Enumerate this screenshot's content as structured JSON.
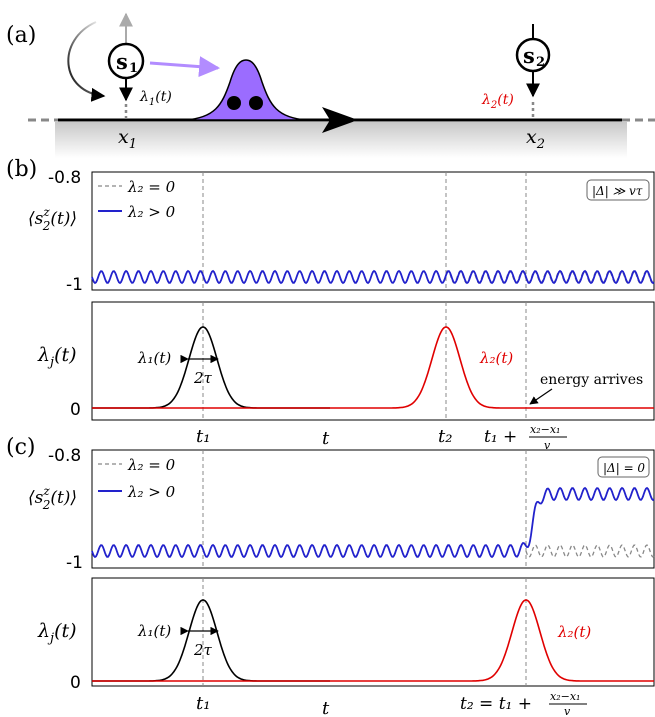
{
  "panel_a": {
    "label": "(a)",
    "spin1": "s",
    "spin1_sub": "1",
    "spin2": "s",
    "spin2_sub": "2",
    "lambda1": "λ",
    "lambda1_sub": "1",
    "lambda1_arg": "(t)",
    "lambda2": "λ",
    "lambda2_sub": "2",
    "lambda2_arg": "(t)",
    "x1": "x",
    "x1_sub": "1",
    "x2": "x",
    "x2_sub": "2",
    "colors": {
      "wavepacket": "#9b6cff",
      "arrow": "#b28cff",
      "lambda2": "#e00000"
    }
  },
  "panel_b": {
    "label": "(b)",
    "top": {
      "y_top": "-0.8",
      "y_bottom": "-1",
      "ylabel_main": "⟨s",
      "ylabel_sup": "z",
      "ylabel_sub": "2",
      "ylabel_tail": "(t)⟩",
      "legend_dashed": "λ₂ = 0",
      "legend_solid": "λ₂ > 0",
      "regime": "|Δ| ≫ vτ"
    },
    "bottom": {
      "ylabel": "λ",
      "ylabel_sub": "j",
      "ylabel_tail": "(t)",
      "y_zero": "0",
      "lambda1_label": "λ₁(t)",
      "width_label": "2τ",
      "lambda2_label": "λ₂(t)",
      "annotation": "energy arrives",
      "tick_t1": "t₁",
      "tick_t": "t",
      "tick_t2": "t₂",
      "tick_t_arrive_prefix": "t₁ +",
      "frac_num": "x₂−x₁",
      "frac_den": "v"
    }
  },
  "panel_c": {
    "label": "(c)",
    "top": {
      "y_top": "-0.8",
      "y_bottom": "-1",
      "ylabel_main": "⟨s",
      "ylabel_sup": "z",
      "ylabel_sub": "2",
      "ylabel_tail": "(t)⟩",
      "legend_dashed": "λ₂ = 0",
      "legend_solid": "λ₂ > 0",
      "regime": "|Δ| = 0"
    },
    "bottom": {
      "ylabel": "λ",
      "ylabel_sub": "j",
      "ylabel_tail": "(t)",
      "y_zero": "0",
      "lambda1_label": "λ₁(t)",
      "width_label": "2τ",
      "lambda2_label": "λ₂(t)",
      "tick_t1": "t₁",
      "tick_t": "t",
      "tick_t2_prefix": "t₂ = t₁ +",
      "frac_num": "x₂−x₁",
      "frac_den": "v"
    }
  },
  "colors": {
    "series": "#2222cc",
    "dashed": "#888888",
    "black": "#000000",
    "red": "#e00000"
  }
}
